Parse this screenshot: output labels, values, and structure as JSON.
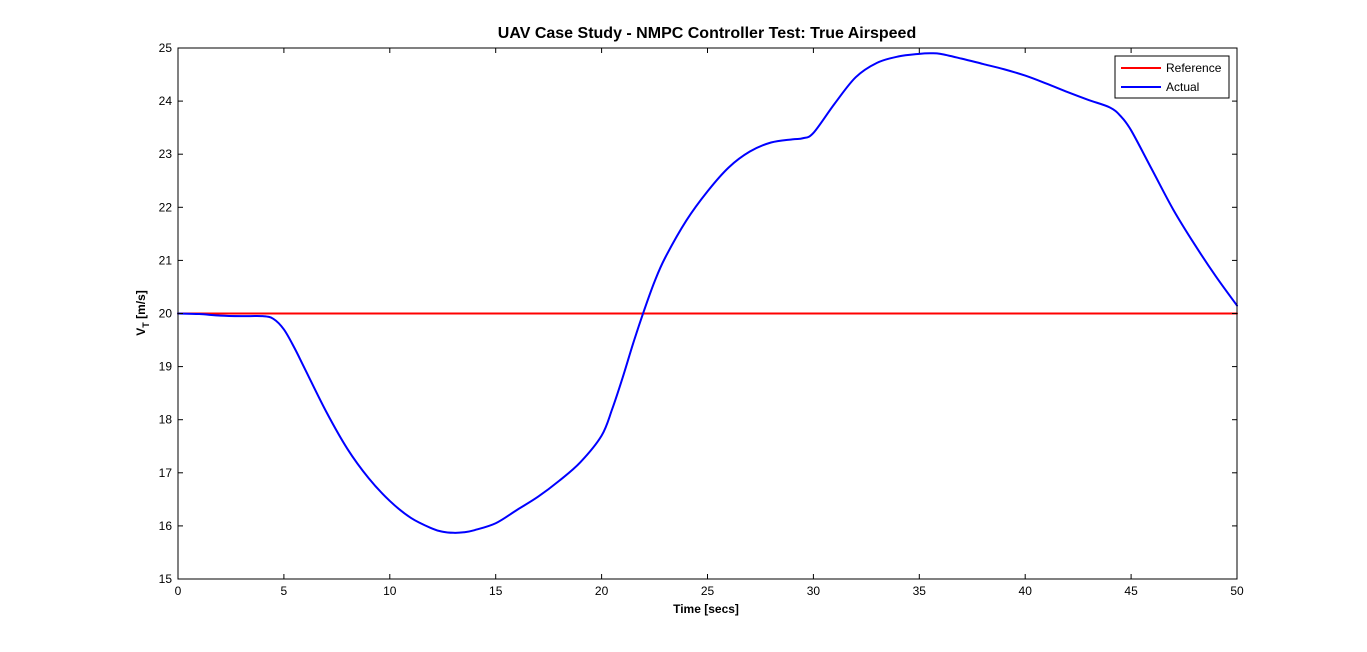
{
  "chart_data": {
    "type": "line",
    "title": "UAV Case Study - NMPC Controller Test: True Airspeed",
    "xlabel": "Time [secs]",
    "ylabel_main": "V",
    "ylabel_sub": "T",
    "ylabel_rest": " [m/s]",
    "xlim": [
      0,
      50
    ],
    "ylim": [
      15,
      25
    ],
    "xticks": [
      0,
      5,
      10,
      15,
      20,
      25,
      30,
      35,
      40,
      45,
      50
    ],
    "yticks": [
      15,
      16,
      17,
      18,
      19,
      20,
      21,
      22,
      23,
      24,
      25
    ],
    "grid": false,
    "legend_position": "top-right",
    "series": [
      {
        "name": "Reference",
        "color": "#ff0000",
        "x": [
          0,
          50
        ],
        "y": [
          20,
          20
        ]
      },
      {
        "name": "Actual",
        "color": "#0000ff",
        "x": [
          0,
          1,
          2,
          3,
          4,
          4.5,
          5,
          5.5,
          6,
          7,
          8,
          9,
          10,
          11,
          12,
          12.5,
          13,
          13.5,
          14,
          15,
          16,
          17,
          18,
          19,
          20,
          20.5,
          21,
          21.5,
          22,
          22.5,
          23,
          24,
          25,
          26,
          27,
          28,
          29,
          29.5,
          30,
          31,
          32,
          33,
          34,
          35,
          35.5,
          36,
          37,
          38,
          39,
          40,
          41,
          42,
          43,
          44,
          44.5,
          45,
          46,
          47,
          48,
          49,
          50
        ],
        "y": [
          20.0,
          19.99,
          19.96,
          19.95,
          19.95,
          19.9,
          19.7,
          19.35,
          18.95,
          18.15,
          17.45,
          16.9,
          16.47,
          16.15,
          15.95,
          15.89,
          15.87,
          15.88,
          15.92,
          16.05,
          16.3,
          16.55,
          16.85,
          17.2,
          17.7,
          18.2,
          18.8,
          19.45,
          20.05,
          20.6,
          21.05,
          21.75,
          22.3,
          22.75,
          23.05,
          23.22,
          23.28,
          23.3,
          23.4,
          23.95,
          24.45,
          24.72,
          24.84,
          24.89,
          24.9,
          24.89,
          24.8,
          24.7,
          24.6,
          24.48,
          24.33,
          24.17,
          24.02,
          23.88,
          23.72,
          23.45,
          22.7,
          21.95,
          21.3,
          20.7,
          20.15
        ]
      }
    ]
  }
}
